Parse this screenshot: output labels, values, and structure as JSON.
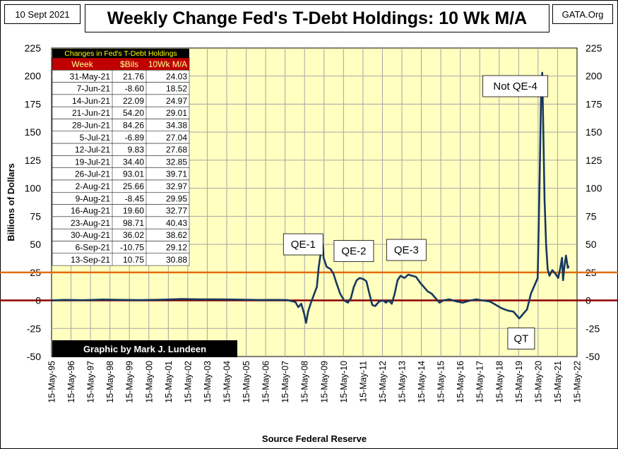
{
  "header": {
    "date": "10 Sept 2021",
    "title": "Weekly Change Fed's T-Debt Holdings: 10 Wk M/A",
    "site": "GATA.Org"
  },
  "credit": "Graphic by Mark J. Lundeen",
  "colors": {
    "plot_bg": "#FFFFC0",
    "line": "#17375E",
    "ref25": "#E46C0A",
    "zero": "#8B0000",
    "table_header": "#C00000",
    "table_title": "#FFFF00"
  },
  "table": {
    "title": "Changes in Fed's T-Debt Holdings",
    "headers": [
      "Week",
      "$Bils",
      "10Wk M/A"
    ],
    "rows": [
      [
        "31-May-21",
        "21.76",
        "24.03"
      ],
      [
        "7-Jun-21",
        "-8.60",
        "18.52"
      ],
      [
        "14-Jun-21",
        "22.09",
        "24.97"
      ],
      [
        "21-Jun-21",
        "54.20",
        "29.01"
      ],
      [
        "28-Jun-21",
        "84.26",
        "34.38"
      ],
      [
        "5-Jul-21",
        "-6.89",
        "27.04"
      ],
      [
        "12-Jul-21",
        "9.83",
        "27.68"
      ],
      [
        "19-Jul-21",
        "34.40",
        "32.85"
      ],
      [
        "26-Jul-21",
        "93.01",
        "39.71"
      ],
      [
        "2-Aug-21",
        "25.66",
        "32.97"
      ],
      [
        "9-Aug-21",
        "-8.45",
        "29.95"
      ],
      [
        "16-Aug-21",
        "19.60",
        "32.77"
      ],
      [
        "23-Aug-21",
        "98.71",
        "40.43"
      ],
      [
        "30-Aug-21",
        "36.02",
        "38.62"
      ],
      [
        "6-Sep-21",
        "-10.75",
        "29.12"
      ],
      [
        "13-Sep-21",
        "10.75",
        "30.88"
      ]
    ]
  },
  "chart_data": {
    "type": "line",
    "title": "Weekly Change Fed's T-Debt Holdings: 10 Wk M/A",
    "ylabel": "Billions   of   Dollars",
    "xlabel": "Source Federal Reserve",
    "ylim": [
      -50,
      225
    ],
    "yticks": [
      -50,
      -25,
      0,
      25,
      50,
      75,
      100,
      125,
      150,
      175,
      200,
      225
    ],
    "xlim": [
      1995.37,
      2022.37
    ],
    "xticks": [
      "15-May-95",
      "15-May-96",
      "15-May-97",
      "15-May-98",
      "15-May-99",
      "15-May-00",
      "15-May-01",
      "15-May-02",
      "15-May-03",
      "15-May-04",
      "15-May-05",
      "15-May-06",
      "15-May-07",
      "15-May-08",
      "15-May-09",
      "15-May-10",
      "15-May-11",
      "15-May-12",
      "15-May-13",
      "15-May-14",
      "15-May-15",
      "15-May-16",
      "15-May-17",
      "15-May-18",
      "15-May-19",
      "15-May-20",
      "15-May-21",
      "15-May-22"
    ],
    "grid": true,
    "reference_lines": [
      25,
      0
    ],
    "annotations": [
      {
        "text": "QE-1",
        "x": 2008.3,
        "y": 50
      },
      {
        "text": "QE-2",
        "x": 2010.9,
        "y": 44
      },
      {
        "text": "QE-3",
        "x": 2013.6,
        "y": 45
      },
      {
        "text": "Not QE-4",
        "x": 2019.2,
        "y": 191
      },
      {
        "text": "QT",
        "x": 2019.5,
        "y": -34
      }
    ],
    "series": [
      {
        "values": [
          [
            1995.37,
            0
          ],
          [
            1996.0,
            0.5
          ],
          [
            1997.0,
            0.2
          ],
          [
            1998.0,
            0.8
          ],
          [
            1999.0,
            0.5
          ],
          [
            2000.0,
            0.3
          ],
          [
            2001.0,
            0.6
          ],
          [
            2002.0,
            1.2
          ],
          [
            2003.0,
            0.9
          ],
          [
            2004.0,
            1.0
          ],
          [
            2005.0,
            0.7
          ],
          [
            2006.0,
            0.4
          ],
          [
            2007.0,
            0.5
          ],
          [
            2007.5,
            0.3
          ],
          [
            2007.9,
            -1.5
          ],
          [
            2008.05,
            -6
          ],
          [
            2008.2,
            -3
          ],
          [
            2008.35,
            -12
          ],
          [
            2008.45,
            -20
          ],
          [
            2008.55,
            -10
          ],
          [
            2008.7,
            -2
          ],
          [
            2008.85,
            5
          ],
          [
            2009.0,
            12
          ],
          [
            2009.1,
            30
          ],
          [
            2009.2,
            42
          ],
          [
            2009.3,
            50
          ],
          [
            2009.35,
            38
          ],
          [
            2009.5,
            30
          ],
          [
            2009.7,
            28
          ],
          [
            2009.85,
            24
          ],
          [
            2010.0,
            16
          ],
          [
            2010.2,
            6
          ],
          [
            2010.4,
            0
          ],
          [
            2010.6,
            -2
          ],
          [
            2010.75,
            2
          ],
          [
            2010.9,
            12
          ],
          [
            2011.05,
            18
          ],
          [
            2011.2,
            20
          ],
          [
            2011.4,
            19
          ],
          [
            2011.55,
            17
          ],
          [
            2011.7,
            6
          ],
          [
            2011.85,
            -4
          ],
          [
            2012.0,
            -5
          ],
          [
            2012.2,
            -1
          ],
          [
            2012.4,
            0
          ],
          [
            2012.55,
            -2
          ],
          [
            2012.7,
            0
          ],
          [
            2012.85,
            -3
          ],
          [
            2013.0,
            6
          ],
          [
            2013.15,
            18
          ],
          [
            2013.3,
            22
          ],
          [
            2013.5,
            20
          ],
          [
            2013.7,
            23
          ],
          [
            2013.9,
            22
          ],
          [
            2014.1,
            21
          ],
          [
            2014.3,
            16
          ],
          [
            2014.5,
            12
          ],
          [
            2014.7,
            8
          ],
          [
            2014.9,
            6
          ],
          [
            2015.1,
            2
          ],
          [
            2015.3,
            -2
          ],
          [
            2015.5,
            0
          ],
          [
            2015.8,
            1
          ],
          [
            2016.2,
            -1
          ],
          [
            2016.5,
            -2
          ],
          [
            2016.9,
            0
          ],
          [
            2017.2,
            1
          ],
          [
            2017.5,
            0
          ],
          [
            2017.9,
            -1
          ],
          [
            2018.2,
            -4
          ],
          [
            2018.5,
            -7
          ],
          [
            2018.8,
            -9
          ],
          [
            2019.1,
            -10
          ],
          [
            2019.4,
            -16
          ],
          [
            2019.6,
            -12
          ],
          [
            2019.8,
            -8
          ],
          [
            2020.0,
            6
          ],
          [
            2020.2,
            14
          ],
          [
            2020.35,
            20
          ],
          [
            2020.45,
            110
          ],
          [
            2020.52,
            180
          ],
          [
            2020.58,
            203
          ],
          [
            2020.64,
            150
          ],
          [
            2020.7,
            90
          ],
          [
            2020.78,
            50
          ],
          [
            2020.86,
            28
          ],
          [
            2020.95,
            22
          ],
          [
            2021.1,
            27
          ],
          [
            2021.25,
            24
          ],
          [
            2021.4,
            20
          ],
          [
            2021.5,
            28
          ],
          [
            2021.6,
            38
          ],
          [
            2021.65,
            18
          ],
          [
            2021.72,
            30
          ],
          [
            2021.8,
            40
          ],
          [
            2021.9,
            29
          ],
          [
            2021.95,
            31
          ]
        ]
      }
    ]
  }
}
